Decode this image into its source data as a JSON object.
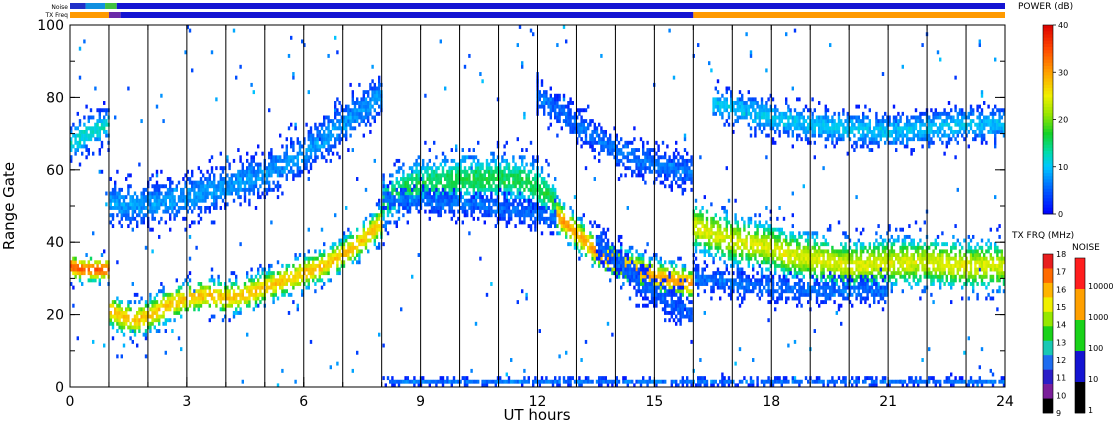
{
  "chart_data": {
    "type": "heatmap",
    "title": "",
    "xlabel": "UT hours",
    "ylabel": "Range Gate",
    "xlim": [
      0,
      24
    ],
    "ylim": [
      0,
      100
    ],
    "x_ticks": [
      0,
      3,
      6,
      9,
      12,
      15,
      18,
      21,
      24
    ],
    "x_tick_labels": [
      "0",
      "3",
      "6",
      "9",
      "12",
      "15",
      "18",
      "21",
      "24"
    ],
    "y_ticks": [
      0,
      20,
      40,
      60,
      80,
      100
    ],
    "y_tick_labels": [
      "0",
      "20",
      "40",
      "60",
      "80",
      "100"
    ],
    "vertical_lines_x": [
      1,
      2,
      3,
      4,
      5,
      6,
      7,
      8,
      9,
      10,
      11,
      12,
      13,
      14,
      15,
      16,
      17,
      18,
      19,
      20,
      21,
      22,
      23
    ],
    "top_bars": {
      "noise_label": "Noise",
      "txfreq_label": "TX Freq",
      "noise_segments": [
        {
          "start": 0.0,
          "end": 0.4,
          "color": "#2030c8"
        },
        {
          "start": 0.4,
          "end": 0.9,
          "color": "#1090e0"
        },
        {
          "start": 0.9,
          "end": 1.2,
          "color": "#40c040"
        },
        {
          "start": 1.2,
          "end": 24.0,
          "color": "#1414d2"
        }
      ],
      "txfreq_segments": [
        {
          "start": 0.0,
          "end": 1.0,
          "color": "#ff9a00"
        },
        {
          "start": 1.0,
          "end": 1.3,
          "color": "#6a2aa8"
        },
        {
          "start": 1.3,
          "end": 16.0,
          "color": "#1414d2"
        },
        {
          "start": 16.0,
          "end": 24.0,
          "color": "#ff9a00"
        }
      ]
    },
    "power_colorbar": {
      "title": "POWER (dB)",
      "range": [
        0,
        40
      ],
      "tick_labels": [
        "40",
        "30",
        "20",
        "10",
        "0"
      ],
      "tick_values": [
        40,
        30,
        20,
        10,
        0
      ]
    },
    "txfreq_colorbar": {
      "title": "TX FRQ (MHz)",
      "tick_labels": [
        "18",
        "17",
        "16",
        "15",
        "14",
        "13",
        "12",
        "11",
        "10",
        "9"
      ],
      "colors": [
        "#e81e1e",
        "#ff6a00",
        "#ffb400",
        "#f0f000",
        "#96e800",
        "#19d219",
        "#19c8b4",
        "#1e6cf0",
        "#2a1ec8",
        "#7a1e9a",
        "#000000"
      ]
    },
    "noise_colorbar": {
      "title": "NOISE",
      "tick_labels": [
        "10000",
        "1000",
        "100",
        "10",
        "1"
      ],
      "colors": [
        "#ff1e1e",
        "#ffa000",
        "#19d219",
        "#1414d2",
        "#000000"
      ]
    },
    "series": [
      {
        "x": [
          0.0,
          0.3,
          0.6,
          0.9,
          1.0
        ],
        "y": [
          33,
          32,
          32,
          32,
          32
        ],
        "power": 34,
        "spread": 3
      },
      {
        "x": [
          1.0,
          1.3,
          1.7,
          2.0,
          2.5,
          3.0,
          3.5,
          4.0,
          4.5,
          5.0,
          5.5,
          6.0,
          6.5,
          7.0,
          7.5,
          8.0
        ],
        "y": [
          21,
          19,
          18,
          19,
          22,
          24,
          25,
          24,
          25,
          27,
          29,
          31,
          33,
          36,
          40,
          45
        ],
        "power": 28,
        "spread": 4
      },
      {
        "x": [
          8.0,
          8.5,
          9.0,
          9.5,
          10.0,
          10.5,
          11.0,
          11.5,
          12.0,
          12.5
        ],
        "y": [
          50,
          54,
          56,
          56,
          57,
          57,
          57,
          57,
          55,
          50
        ],
        "power": 16,
        "spread": 6
      },
      {
        "x": [
          12.5,
          13.0,
          13.5,
          14.0,
          14.5,
          15.0,
          15.5,
          16.0
        ],
        "y": [
          47,
          42,
          37,
          34,
          32,
          30,
          29,
          28
        ],
        "power": 30,
        "spread": 4
      },
      {
        "x": [
          16.0,
          16.5,
          17.0,
          17.5,
          18.0,
          18.5,
          19.0,
          19.5,
          20.0,
          21.0,
          22.0,
          23.0,
          24.0
        ],
        "y": [
          44,
          42,
          40,
          39,
          38,
          36,
          35,
          34,
          33,
          34,
          34,
          33,
          33
        ],
        "power": 24,
        "spread": 6
      },
      {
        "x": [
          0.0,
          0.5,
          1.0
        ],
        "y": [
          67,
          70,
          72
        ],
        "power": 12,
        "spread": 4
      },
      {
        "x": [
          1.0,
          2.0,
          3.0,
          4.0,
          5.0,
          6.0,
          7.0,
          8.0
        ],
        "y": [
          50,
          50,
          52,
          55,
          58,
          64,
          72,
          80
        ],
        "power": 8,
        "spread": 5
      },
      {
        "x": [
          8.0,
          9.0,
          10.0,
          11.0,
          12.0,
          12.5
        ],
        "y": [
          52,
          51,
          50,
          49,
          47,
          46
        ],
        "power": 6,
        "spread": 3
      },
      {
        "x": [
          12.0,
          13.0,
          14.0,
          15.0,
          16.0
        ],
        "y": [
          80,
          72,
          65,
          61,
          59
        ],
        "power": 6,
        "spread": 4
      },
      {
        "x": [
          13.5,
          14.5,
          15.5,
          16.0
        ],
        "y": [
          40,
          30,
          22,
          20
        ],
        "power": 5,
        "spread": 4
      },
      {
        "x": [
          16.0,
          17.0,
          18.0,
          19.0,
          20.0,
          21.0
        ],
        "y": [
          30,
          28,
          27,
          26,
          26,
          26
        ],
        "power": 6,
        "spread": 3
      },
      {
        "x": [
          16.5,
          18.0,
          19.0,
          20.0,
          21.0,
          22.0,
          23.0,
          24.0
        ],
        "y": [
          78,
          74,
          72,
          71,
          70,
          71,
          72,
          72
        ],
        "power": 10,
        "spread": 4
      },
      {
        "x": [
          8.0,
          10.0,
          12.0,
          14.0,
          16.0,
          18.0,
          20.0,
          22.0,
          24.0
        ],
        "y": [
          1,
          1,
          1,
          1,
          1,
          1,
          1,
          1,
          1
        ],
        "power": 6,
        "spread": 1
      }
    ],
    "background_noise_density": 0.006
  }
}
